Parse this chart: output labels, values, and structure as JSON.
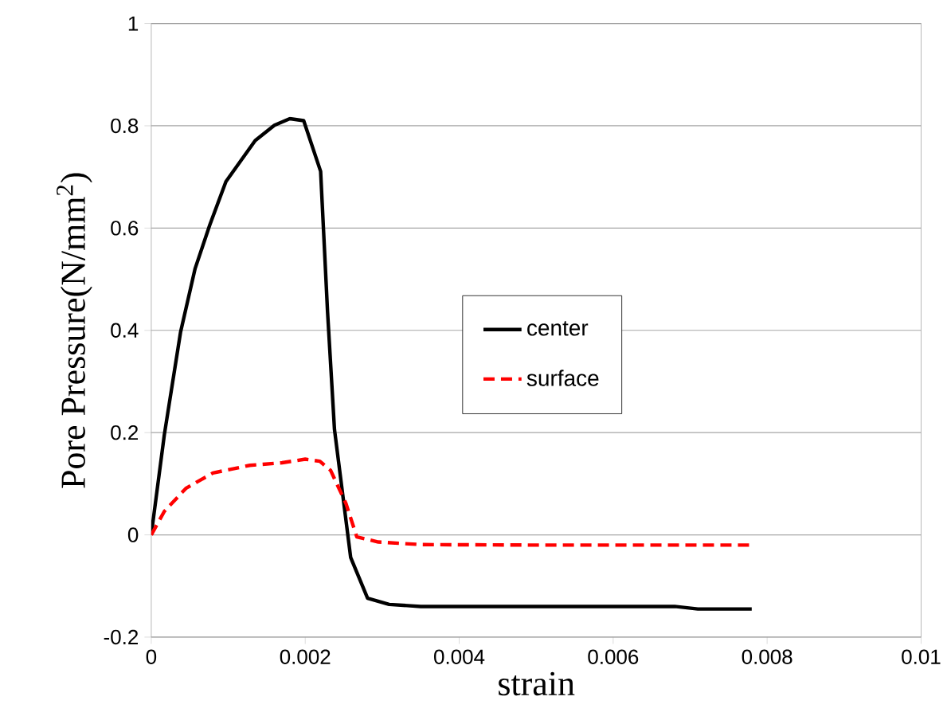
{
  "chart_data": {
    "type": "line",
    "xlabel": "strain",
    "ylabel": "Pore Pressure(N/mm$^{2}$)",
    "xlim": [
      0,
      0.01
    ],
    "ylim": [
      -0.2,
      1
    ],
    "xticks": [
      0,
      0.002,
      0.004,
      0.006,
      0.008,
      0.01
    ],
    "yticks": [
      -0.2,
      0,
      0.2,
      0.4,
      0.6,
      0.8,
      1
    ],
    "grid": "y",
    "legend": "right",
    "series": [
      {
        "name": "center",
        "color": "#000000",
        "line_style": "solid",
        "x": [
          0,
          0.00017,
          0.00038,
          0.00057,
          0.00076,
          0.00097,
          0.00135,
          0.0016,
          0.0018,
          0.00198,
          0.0022,
          0.00229,
          0.00238,
          0.00259,
          0.00281,
          0.00309,
          0.0035,
          0.005,
          0.0068,
          0.0071,
          0.0078
        ],
        "values": [
          0,
          0.196,
          0.396,
          0.521,
          0.606,
          0.691,
          0.771,
          0.801,
          0.814,
          0.81,
          0.711,
          0.436,
          0.206,
          -0.044,
          -0.124,
          -0.136,
          -0.14,
          -0.14,
          -0.14,
          -0.145,
          -0.145
        ]
      },
      {
        "name": "surface",
        "color": "#ff0000",
        "line_style": "dashed",
        "x": [
          0,
          0.00017,
          0.00045,
          0.0008,
          0.00128,
          0.0017,
          0.002,
          0.00219,
          0.00233,
          0.00253,
          0.00267,
          0.00295,
          0.0035,
          0.005,
          0.0078
        ],
        "values": [
          0,
          0.046,
          0.091,
          0.121,
          0.136,
          0.141,
          0.148,
          0.144,
          0.126,
          0.061,
          -0.004,
          -0.014,
          -0.019,
          -0.02,
          -0.02
        ]
      }
    ]
  }
}
